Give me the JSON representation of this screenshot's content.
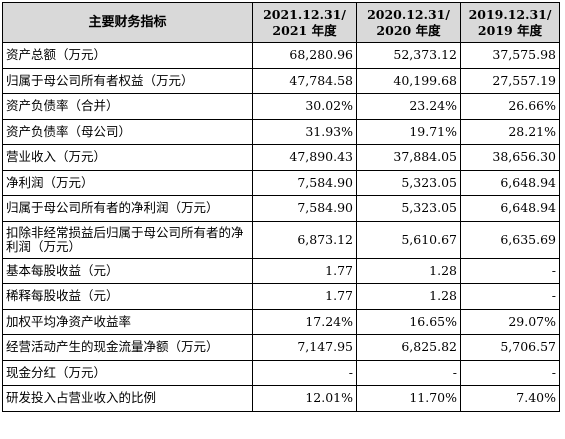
{
  "table": {
    "headers": [
      "主要财务指标",
      "2021.12.31/\n2021 年度",
      "2020.12.31/\n2020 年度",
      "2019.12.31/\n2019 年度"
    ],
    "rows": [
      [
        "资产总额（万元）",
        "68,280.96",
        "52,373.12",
        "37,575.98"
      ],
      [
        "归属于母公司所有者权益（万元）",
        "47,784.58",
        "40,199.68",
        "27,557.19"
      ],
      [
        "资产负债率（合并）",
        "30.02%",
        "23.24%",
        "26.66%"
      ],
      [
        "资产负债率（母公司）",
        "31.93%",
        "19.71%",
        "28.21%"
      ],
      [
        "营业收入（万元）",
        "47,890.43",
        "37,884.05",
        "38,656.30"
      ],
      [
        "净利润（万元）",
        "7,584.90",
        "5,323.05",
        "6,648.94"
      ],
      [
        "归属于母公司所有者的净利润（万元）",
        "7,584.90",
        "5,323.05",
        "6,648.94"
      ],
      [
        "扣除非经常损益后归属于母公司所有者的净利润（万元）",
        "6,873.12",
        "5,610.67",
        "6,635.69"
      ],
      [
        "基本每股收益（元）",
        "1.77",
        "1.28",
        "-"
      ],
      [
        "稀释每股收益（元）",
        "1.77",
        "1.28",
        "-"
      ],
      [
        "加权平均净资产收益率",
        "17.24%",
        "16.65%",
        "29.07%"
      ],
      [
        "经营活动产生的现金流量净额（万元）",
        "7,147.95",
        "6,825.82",
        "5,706.57"
      ],
      [
        "现金分红（万元）",
        "-",
        "-",
        "-"
      ],
      [
        "研发投入占营业收入的比例",
        "12.01%",
        "11.70%",
        "7.40%"
      ]
    ]
  }
}
